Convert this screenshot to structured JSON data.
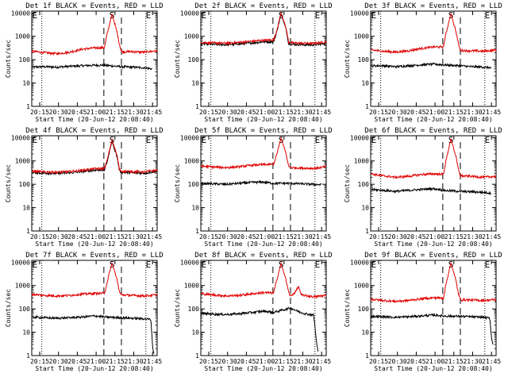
{
  "figure": {
    "title_suffix": " BLACK = Events, RED = LLD",
    "ylabel": "Counts/sec",
    "xlabel": "Start Time (20-Jun-12 20:08:40)",
    "x_ticks": [
      "20:15",
      "20:30",
      "20:45",
      "21:00",
      "21:15",
      "21:30",
      "21:45"
    ],
    "y_ticks": [
      "1",
      "10",
      "100",
      "1000",
      "10000"
    ],
    "markers": [
      "E",
      "S",
      "E"
    ]
  },
  "chart_data": [
    {
      "type": "line",
      "title": "Det 1f BLACK = Events, RED = LLD",
      "x_unit": "minutes after 20:08:40",
      "ylog": true,
      "ylim": [
        1,
        12000
      ],
      "xlim": [
        0,
        100
      ],
      "series": [
        {
          "name": "Events",
          "color": "#000000",
          "x": [
            0,
            10,
            20,
            30,
            40,
            50,
            55,
            57.5,
            71.5,
            80,
            90,
            96
          ],
          "y": [
            48,
            50,
            48,
            52,
            55,
            58,
            58,
            58,
            50,
            48,
            45,
            40
          ]
        },
        {
          "name": "LLD",
          "color": "#e00000",
          "x": [
            0,
            10,
            20,
            30,
            40,
            50,
            58,
            60,
            64,
            68,
            70,
            71.5,
            80,
            90,
            100
          ],
          "y": [
            230,
            200,
            180,
            210,
            280,
            320,
            330,
            1200,
            9000,
            1500,
            450,
            220,
            220,
            210,
            240
          ]
        }
      ]
    },
    {
      "type": "line",
      "title": "Det 2f BLACK = Events, RED = LLD",
      "x_unit": "minutes after 20:08:40",
      "ylog": true,
      "ylim": [
        1,
        12000
      ],
      "xlim": [
        0,
        100
      ],
      "series": [
        {
          "name": "Events",
          "color": "#000000",
          "x": [
            0,
            10,
            20,
            30,
            40,
            50,
            58,
            60,
            64,
            68,
            70,
            71.5,
            80,
            90,
            100
          ],
          "y": [
            480,
            450,
            440,
            470,
            520,
            580,
            600,
            1200,
            9000,
            2000,
            500,
            460,
            440,
            430,
            500
          ]
        },
        {
          "name": "LLD",
          "color": "#e00000",
          "x": [
            0,
            10,
            20,
            30,
            40,
            50,
            58,
            60,
            64,
            68,
            70,
            71.5,
            80,
            90,
            100
          ],
          "y": [
            560,
            520,
            510,
            550,
            610,
            680,
            700,
            1400,
            10000,
            2200,
            580,
            530,
            510,
            500,
            580
          ]
        }
      ]
    },
    {
      "type": "line",
      "title": "Det 3f BLACK = Events, RED = LLD",
      "x_unit": "minutes after 20:08:40",
      "ylog": true,
      "ylim": [
        1,
        12000
      ],
      "xlim": [
        0,
        100
      ],
      "series": [
        {
          "name": "Events",
          "color": "#000000",
          "x": [
            0,
            10,
            20,
            30,
            40,
            50,
            55,
            57.5,
            71.5,
            80,
            90,
            96
          ],
          "y": [
            55,
            55,
            50,
            55,
            60,
            65,
            62,
            60,
            55,
            50,
            48,
            45
          ]
        },
        {
          "name": "LLD",
          "color": "#e00000",
          "x": [
            0,
            10,
            20,
            30,
            40,
            50,
            58,
            60,
            64,
            68,
            70,
            71.5,
            80,
            90,
            100
          ],
          "y": [
            260,
            230,
            210,
            240,
            300,
            350,
            350,
            1300,
            9500,
            1600,
            480,
            250,
            240,
            230,
            260
          ]
        }
      ]
    },
    {
      "type": "line",
      "title": "Det 4f BLACK = Events, RED = LLD",
      "x_unit": "minutes after 20:08:40",
      "ylog": true,
      "ylim": [
        1,
        12000
      ],
      "xlim": [
        0,
        100
      ],
      "series": [
        {
          "name": "Events",
          "color": "#000000",
          "x": [
            0,
            10,
            20,
            30,
            40,
            50,
            58,
            60,
            64,
            68,
            70,
            71.5,
            80,
            90,
            100
          ],
          "y": [
            320,
            300,
            290,
            310,
            350,
            400,
            420,
            900,
            7000,
            1500,
            380,
            330,
            310,
            300,
            360
          ]
        },
        {
          "name": "LLD",
          "color": "#e00000",
          "x": [
            0,
            10,
            20,
            30,
            40,
            50,
            58,
            60,
            64,
            68,
            70,
            71.5,
            80,
            90,
            100
          ],
          "y": [
            360,
            340,
            330,
            350,
            400,
            460,
            480,
            1000,
            8000,
            1700,
            430,
            370,
            350,
            340,
            400
          ]
        }
      ]
    },
    {
      "type": "line",
      "title": "Det 5f BLACK = Events, RED = LLD",
      "x_unit": "minutes after 20:08:40",
      "ylog": true,
      "ylim": [
        1,
        12000
      ],
      "xlim": [
        0,
        100
      ],
      "series": [
        {
          "name": "Events",
          "color": "#000000",
          "x": [
            0,
            10,
            20,
            30,
            40,
            50,
            55,
            57.5,
            71.5,
            80,
            90,
            96
          ],
          "y": [
            110,
            105,
            100,
            110,
            120,
            125,
            115,
            110,
            110,
            105,
            100,
            95
          ]
        },
        {
          "name": "LLD",
          "color": "#e00000",
          "x": [
            0,
            10,
            20,
            30,
            40,
            50,
            58,
            60,
            64,
            68,
            70,
            71.5,
            80,
            90,
            100
          ],
          "y": [
            600,
            550,
            520,
            560,
            650,
            700,
            720,
            1500,
            9500,
            2000,
            600,
            520,
            500,
            480,
            560
          ]
        }
      ]
    },
    {
      "type": "line",
      "title": "Det 6f BLACK = Events, RED = LLD",
      "x_unit": "minutes after 20:08:40",
      "ylog": true,
      "ylim": [
        1,
        12000
      ],
      "xlim": [
        0,
        100
      ],
      "series": [
        {
          "name": "Events",
          "color": "#000000",
          "x": [
            0,
            10,
            20,
            30,
            40,
            50,
            55,
            57.5,
            71.5,
            80,
            90,
            96
          ],
          "y": [
            60,
            55,
            50,
            55,
            60,
            65,
            60,
            55,
            50,
            48,
            45,
            42
          ]
        },
        {
          "name": "LLD",
          "color": "#e00000",
          "x": [
            0,
            10,
            20,
            30,
            40,
            50,
            58,
            60,
            64,
            68,
            70,
            71.5,
            80,
            90,
            100
          ],
          "y": [
            280,
            230,
            200,
            220,
            260,
            280,
            270,
            1000,
            9000,
            1500,
            420,
            230,
            220,
            200,
            220
          ]
        }
      ]
    },
    {
      "type": "line",
      "title": "Det 7f BLACK = Events, RED = LLD",
      "x_unit": "minutes after 20:08:40",
      "ylog": true,
      "ylim": [
        1,
        12000
      ],
      "xlim": [
        0,
        100
      ],
      "series": [
        {
          "name": "Events",
          "color": "#000000",
          "x": [
            0,
            10,
            20,
            30,
            40,
            50,
            55,
            57.5,
            71.5,
            80,
            90,
            95,
            96.5,
            97.5
          ],
          "y": [
            45,
            42,
            40,
            42,
            45,
            50,
            48,
            45,
            42,
            40,
            38,
            35,
            2,
            1.2
          ]
        },
        {
          "name": "LLD",
          "color": "#e00000",
          "x": [
            0,
            10,
            20,
            30,
            40,
            50,
            58,
            60,
            64,
            68,
            70,
            71.5,
            80,
            90,
            100
          ],
          "y": [
            420,
            380,
            360,
            380,
            430,
            460,
            470,
            1300,
            9500,
            1800,
            520,
            400,
            380,
            360,
            400
          ]
        }
      ]
    },
    {
      "type": "line",
      "title": "Det 8f BLACK = Events, RED = LLD",
      "x_unit": "minutes after 20:08:40",
      "ylog": true,
      "ylim": [
        1,
        12000
      ],
      "xlim": [
        0,
        100
      ],
      "series": [
        {
          "name": "Events",
          "color": "#000000",
          "x": [
            0,
            10,
            20,
            30,
            40,
            50,
            55,
            57.5,
            71.5,
            75,
            80,
            85,
            90,
            92.5,
            93.5
          ],
          "y": [
            65,
            60,
            58,
            62,
            70,
            80,
            75,
            70,
            110,
            90,
            70,
            60,
            55,
            3,
            1.5
          ]
        },
        {
          "name": "LLD",
          "color": "#e00000",
          "x": [
            0,
            10,
            20,
            30,
            40,
            50,
            58,
            60,
            64,
            68,
            70,
            71.5,
            75,
            78,
            80,
            90,
            100
          ],
          "y": [
            450,
            400,
            360,
            380,
            440,
            500,
            480,
            1300,
            9000,
            1700,
            520,
            350,
            500,
            900,
            400,
            330,
            380
          ]
        }
      ]
    },
    {
      "type": "line",
      "title": "Det 9f BLACK = Events, RED = LLD",
      "x_unit": "minutes after 20:08:40",
      "ylog": true,
      "ylim": [
        1,
        12000
      ],
      "xlim": [
        0,
        100
      ],
      "series": [
        {
          "name": "Events",
          "color": "#000000",
          "x": [
            0,
            10,
            20,
            30,
            40,
            50,
            55,
            57.5,
            71.5,
            80,
            90,
            95,
            96.5,
            97.5
          ],
          "y": [
            48,
            46,
            44,
            46,
            50,
            55,
            52,
            50,
            48,
            46,
            44,
            40,
            5,
            3
          ]
        },
        {
          "name": "LLD",
          "color": "#e00000",
          "x": [
            0,
            10,
            20,
            30,
            40,
            50,
            58,
            60,
            64,
            68,
            70,
            71.5,
            80,
            90,
            100
          ],
          "y": [
            260,
            230,
            210,
            230,
            270,
            300,
            290,
            1100,
            9500,
            1600,
            450,
            250,
            240,
            230,
            250
          ]
        }
      ]
    }
  ]
}
